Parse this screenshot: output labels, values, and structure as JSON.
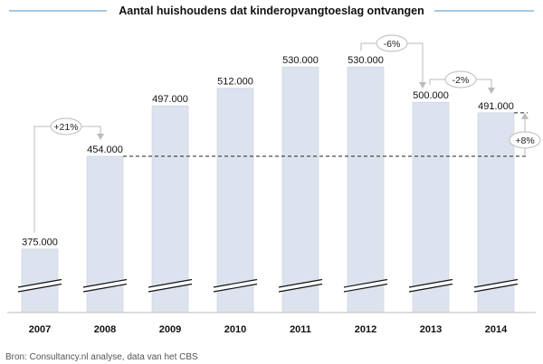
{
  "chart_data": {
    "type": "bar",
    "title": "Aantal huishoudens dat kinderopvangtoeslag ontvangen",
    "categories": [
      "2007",
      "2008",
      "2009",
      "2010",
      "2011",
      "2012",
      "2013",
      "2014"
    ],
    "values": [
      375000,
      454000,
      497000,
      512000,
      530000,
      530000,
      500000,
      491000
    ],
    "value_labels": [
      "375.000",
      "454.000",
      "497.000",
      "512.000",
      "530.000",
      "530.000",
      "500.000",
      "491.000"
    ],
    "axis_break": true,
    "grid": false,
    "bar_color": "#dde3ee",
    "annotations": [
      {
        "label": "+21%",
        "from": "2007",
        "to": "2008"
      },
      {
        "label": "-6%",
        "from": "2012",
        "to": "2013"
      },
      {
        "label": "-2%",
        "from": "2013",
        "to": "2014"
      },
      {
        "label": "+8%",
        "from": "2008",
        "to": "2014",
        "style": "dashed-reference"
      }
    ],
    "source": "Bron: Consultancy.nl analyse, data van het CBS"
  }
}
